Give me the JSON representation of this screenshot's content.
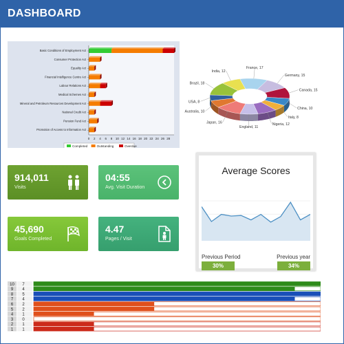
{
  "header": {
    "title": "DASHBOARD"
  },
  "hbar_chart": {
    "type": "bar",
    "orientation": "horizontal",
    "categories": [
      "Basic Conditions of Employment Act",
      "Consumer Protection Act",
      "Equality Act",
      "Financial Intelligence Centre Act",
      "Labour Relations Act",
      "Medical Schemes Act",
      "Mineral and Petroleum Resources Development Act",
      "National Credit Act",
      "Pension Fund Act",
      "Promotion of Access to Information Act"
    ],
    "series": [
      {
        "name": "Completed",
        "color": "#33cc33",
        "values": [
          8,
          0,
          0,
          0,
          0,
          0,
          0,
          0,
          0,
          0
        ]
      },
      {
        "name": "Outstanding",
        "color": "#f57c00",
        "values": [
          18,
          4,
          2,
          4,
          4,
          2,
          4,
          2,
          3,
          2
        ]
      },
      {
        "name": "Overdue",
        "color": "#cc0000",
        "values": [
          4,
          0,
          0,
          0,
          2,
          0,
          4,
          0,
          0,
          0
        ]
      }
    ],
    "x_ticks": [
      "0",
      "2",
      "4",
      "6",
      "8",
      "10",
      "12",
      "14",
      "16",
      "18",
      "20",
      "22",
      "24",
      "26",
      "28"
    ],
    "xlim": [
      0,
      30
    ]
  },
  "donut_chart": {
    "type": "pie",
    "slices": [
      {
        "label": "France, 17",
        "value": 17,
        "color": "#a8d4ee"
      },
      {
        "label": "Germany, 15",
        "value": 15,
        "color": "#c7bde0"
      },
      {
        "label": "Canada, 15",
        "value": 15,
        "color": "#b0143c"
      },
      {
        "label": "China, 10",
        "value": 10,
        "color": "#3a88c8"
      },
      {
        "label": "Italy, 8",
        "value": 8,
        "color": "#f0b03c"
      },
      {
        "label": "Nigeria, 12",
        "value": 12,
        "color": "#9a6cc0"
      },
      {
        "label": "England, 11",
        "value": 11,
        "color": "#c6bfe8"
      },
      {
        "label": "Japan, 16",
        "value": 16,
        "color": "#ee7b78"
      },
      {
        "label": "Australia, 10",
        "value": 10,
        "color": "#e07830"
      },
      {
        "label": "USA, 8",
        "value": 8,
        "color": "#2f5f9e"
      },
      {
        "label": "Brazil, 18",
        "value": 18,
        "color": "#98c23a"
      },
      {
        "label": "India, 12",
        "value": 12,
        "color": "#e8e050"
      }
    ]
  },
  "kpis": {
    "visits": {
      "value": "914,011",
      "label": "Visits"
    },
    "duration": {
      "value": "04:55",
      "label": "Avg. Visit Duration"
    },
    "goals": {
      "value": "45,690",
      "label": "Goals Completed"
    },
    "pages": {
      "value": "4.47",
      "label": "Pages / Visit"
    }
  },
  "avg_scores": {
    "title": "Average Scores",
    "previous_period_label": "Previous Period",
    "previous_year_label": "Previous year",
    "previous_period_value": "30%",
    "previous_year_value": "34%",
    "sparkline": [
      62,
      35,
      48,
      45,
      46,
      38,
      48,
      34,
      44,
      70,
      38,
      48
    ]
  },
  "bar_list": {
    "rows": [
      {
        "a": "10",
        "b": "7",
        "fill": 1.0,
        "color": "#2e8b1a"
      },
      {
        "a": "9",
        "b": "4",
        "fill": 0.91,
        "color": "#2e8b1a"
      },
      {
        "a": "8",
        "b": "5",
        "fill": 1.0,
        "color": "#1a4fb8"
      },
      {
        "a": "7",
        "b": "4",
        "fill": 0.91,
        "color": "#1a4fb8"
      },
      {
        "a": "6",
        "b": "2",
        "fill": 0.42,
        "color": "#e0501c"
      },
      {
        "a": "5",
        "b": "2",
        "fill": 0.42,
        "color": "#e0501c"
      },
      {
        "a": "4",
        "b": "1",
        "fill": 0.21,
        "color": "#e0501c"
      },
      {
        "a": "3",
        "b": "0",
        "fill": 0.0,
        "color": "#e0501c"
      },
      {
        "a": "2",
        "b": "1",
        "fill": 0.21,
        "color": "#cc2a1a"
      },
      {
        "a": "1",
        "b": "1",
        "fill": 0.21,
        "color": "#cc2a1a"
      }
    ]
  },
  "icons": {
    "visits": "people-icon",
    "duration": "chevron-circle-icon",
    "goals": "checkered-flag-icon",
    "pages": "document-person-icon"
  }
}
